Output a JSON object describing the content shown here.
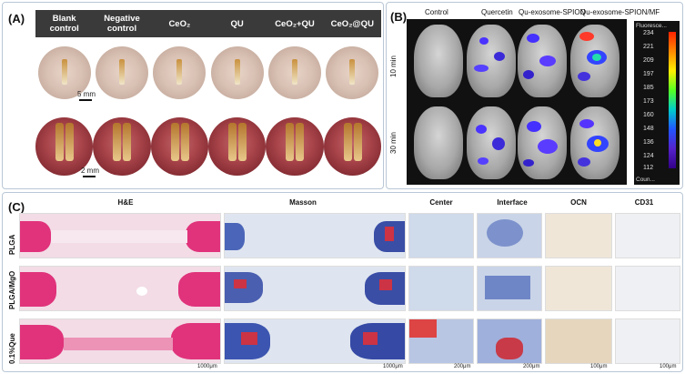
{
  "panel_a": {
    "label": "(A)",
    "headers": [
      {
        "line1": "Blank",
        "line2": "control"
      },
      {
        "line1": "Negative",
        "line2": "control"
      },
      {
        "line1": "CeO₂",
        "line2": ""
      },
      {
        "line1": "QU",
        "line2": ""
      },
      {
        "line1": "CeO₂+QU",
        "line2": ""
      },
      {
        "line1": "CeO₂@QU",
        "line2": ""
      }
    ],
    "scalebar_top": "5 mm",
    "scalebar_bottom": "2 mm"
  },
  "panel_b": {
    "label": "(B)",
    "columns": [
      "Control",
      "Quercetin",
      "Qu-exosome-SPION",
      "Qu-exosome-SPION/MF"
    ],
    "rows": [
      "10 min",
      "30 min"
    ],
    "colorbar": {
      "title": "Fluoresce...",
      "ticks": [
        "234",
        "221",
        "209",
        "197",
        "185",
        "173",
        "160",
        "148",
        "136",
        "124",
        "112"
      ],
      "footer": "Coun..."
    }
  },
  "panel_c": {
    "label": "(C)",
    "columns": [
      "H&E",
      "Masson",
      "Center",
      "Interface",
      "OCN",
      "CD31"
    ],
    "rows": [
      "PLGA",
      "PLGA/MgO",
      "0.1%Que"
    ],
    "scale_wide": "1000μm",
    "scale_small": "200μm",
    "scale_ocn": "100μm"
  }
}
